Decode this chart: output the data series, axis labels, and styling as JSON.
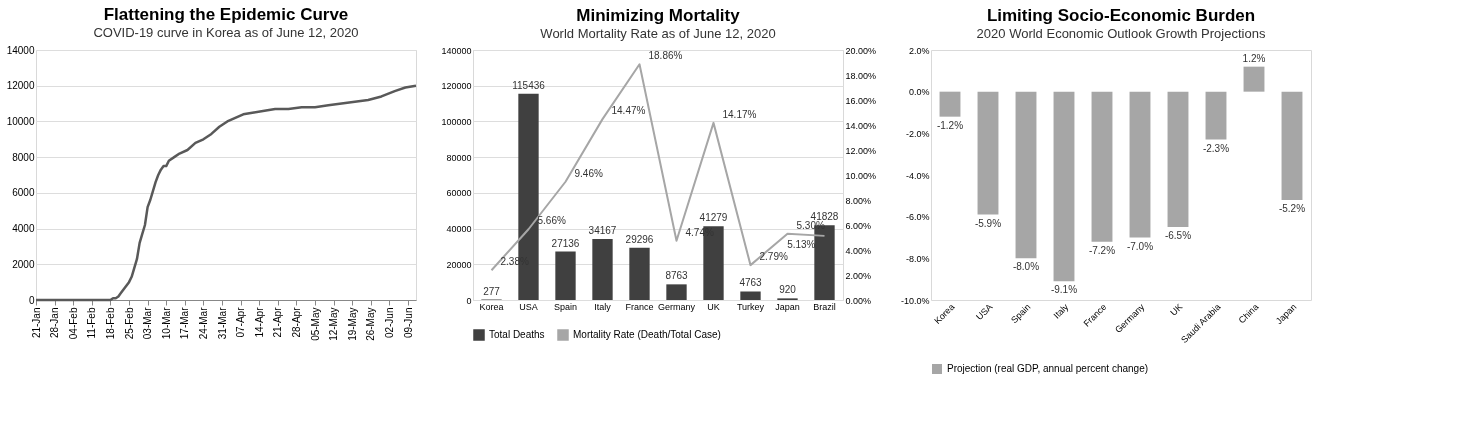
{
  "chart_data": [
    {
      "type": "line",
      "title": "Flattening the Epidemic Curve",
      "subtitle": "COVID-19 curve in Korea as of June 12, 2020",
      "x": [
        "2020-01-21",
        "2020-02-04",
        "2020-02-18",
        "2020-02-19",
        "2020-02-20",
        "2020-02-21",
        "2020-02-22",
        "2020-02-23",
        "2020-02-24",
        "2020-02-25",
        "2020-02-26",
        "2020-02-27",
        "2020-02-28",
        "2020-02-29",
        "2020-03-01",
        "2020-03-02",
        "2020-03-03",
        "2020-03-04",
        "2020-03-05",
        "2020-03-06",
        "2020-03-07",
        "2020-03-08",
        "2020-03-09",
        "2020-03-10",
        "2020-03-11",
        "2020-03-13",
        "2020-03-15",
        "2020-03-18",
        "2020-03-21",
        "2020-03-24",
        "2020-03-27",
        "2020-03-30",
        "2020-04-02",
        "2020-04-05",
        "2020-04-08",
        "2020-04-12",
        "2020-04-16",
        "2020-04-20",
        "2020-04-25",
        "2020-04-30",
        "2020-05-05",
        "2020-05-10",
        "2020-05-15",
        "2020-05-20",
        "2020-05-25",
        "2020-05-30",
        "2020-06-04",
        "2020-06-08",
        "2020-06-12"
      ],
      "series": [
        {
          "color": "#595959",
          "values": [
            0,
            0,
            0,
            100,
            100,
            200,
            400,
            600,
            800,
            1000,
            1300,
            1800,
            2300,
            3200,
            3700,
            4200,
            5200,
            5600,
            6100,
            6600,
            7000,
            7300,
            7500,
            7500,
            7800,
            8000,
            8200,
            8400,
            8800,
            9000,
            9300,
            9700,
            10000,
            10200,
            10400,
            10500,
            10600,
            10700,
            10700,
            10800,
            10800,
            10900,
            11000,
            11100,
            11200,
            11400,
            11700,
            11900,
            12000
          ]
        }
      ],
      "xlim": [
        "2020-01-21",
        "2020-06-12"
      ],
      "xticks": [
        {
          "value": "2020-01-21",
          "label": "21-Jan"
        },
        {
          "value": "2020-01-28",
          "label": "28-Jan"
        },
        {
          "value": "2020-02-04",
          "label": "04-Feb"
        },
        {
          "value": "2020-02-11",
          "label": "11-Feb"
        },
        {
          "value": "2020-02-18",
          "label": "18-Feb"
        },
        {
          "value": "2020-02-25",
          "label": "25-Feb"
        },
        {
          "value": "2020-03-03",
          "label": "03-Mar"
        },
        {
          "value": "2020-03-10",
          "label": "10-Mar"
        },
        {
          "value": "2020-03-17",
          "label": "17-Mar"
        },
        {
          "value": "2020-03-24",
          "label": "24-Mar"
        },
        {
          "value": "2020-03-31",
          "label": "31-Mar"
        },
        {
          "value": "2020-04-07",
          "label": "07-Apr"
        },
        {
          "value": "2020-04-14",
          "label": "14-Apr"
        },
        {
          "value": "2020-04-21",
          "label": "21-Apr"
        },
        {
          "value": "2020-04-28",
          "label": "28-Apr"
        },
        {
          "value": "2020-05-05",
          "label": "05-May"
        },
        {
          "value": "2020-05-12",
          "label": "12-May"
        },
        {
          "value": "2020-05-19",
          "label": "19-May"
        },
        {
          "value": "2020-05-26",
          "label": "26-May"
        },
        {
          "value": "2020-06-02",
          "label": "02-Jun"
        },
        {
          "value": "2020-06-09",
          "label": "09-Jun"
        }
      ],
      "ylim": [
        0,
        14000
      ],
      "yticks": [
        0,
        2000,
        4000,
        6000,
        8000,
        10000,
        12000,
        14000
      ],
      "grid": "y",
      "line_style": "solid",
      "marker": "none"
    },
    {
      "type": "bar",
      "title": "Minimizing Mortality",
      "subtitle": "World  Mortality Rate as of June 12, 2020",
      "categories": [
        "Korea",
        "USA",
        "Spain",
        "Italy",
        "France",
        "Germany",
        "UK",
        "Turkey",
        "Japan",
        "Brazil"
      ],
      "series": [
        {
          "name": "Total Deaths",
          "type": "bar",
          "color": "#404040",
          "values": [
            277,
            115436,
            27136,
            34167,
            29296,
            8763,
            41279,
            4763,
            920,
            41828
          ],
          "value_labels": [
            "277",
            "115436",
            "27136",
            "34167",
            "29296",
            "8763",
            "41279",
            "4763",
            "920",
            "41828"
          ]
        },
        {
          "name": "Mortality Rate (Death/Total Case)",
          "type": "line",
          "axis": "y2",
          "color": "#a6a6a6",
          "values": [
            2.38,
            5.66,
            9.46,
            14.47,
            18.86,
            4.74,
            14.17,
            2.79,
            5.3,
            5.13
          ],
          "value_labels": [
            "2.38%",
            "5.66%",
            "9.46%",
            "14.47%",
            "18.86%",
            "4.74%",
            "14.17%",
            "2.79%",
            "5.30%",
            "5.13%"
          ]
        }
      ],
      "ylim": [
        0,
        140000
      ],
      "yticks": [
        0,
        20000,
        40000,
        60000,
        80000,
        100000,
        120000,
        140000
      ],
      "y2lim": [
        0,
        20
      ],
      "y2ticks": [
        {
          "value": 0,
          "label": "0.00%"
        },
        {
          "value": 2,
          "label": "2.00%"
        },
        {
          "value": 4,
          "label": "4.00%"
        },
        {
          "value": 6,
          "label": "6.00%"
        },
        {
          "value": 8,
          "label": "8.00%"
        },
        {
          "value": 10,
          "label": "10.00%"
        },
        {
          "value": 12,
          "label": "12.00%"
        },
        {
          "value": 14,
          "label": "14.00%"
        },
        {
          "value": 16,
          "label": "16.00%"
        },
        {
          "value": 18,
          "label": "18.00%"
        },
        {
          "value": 20,
          "label": "20.00%"
        }
      ],
      "grid": "y",
      "legend": "bottom"
    },
    {
      "type": "bar",
      "title": "Limiting Socio-Economic Burden",
      "subtitle": "2020 World Economic Outlook Growth Projections",
      "categories": [
        "Korea",
        "USA",
        "Spain",
        "Italy",
        "France",
        "Germany",
        "UK",
        "Saudi Arabia",
        "China",
        "Japan"
      ],
      "series": [
        {
          "name": "Projection (real GDP, annual percent change)",
          "color": "#a6a6a6",
          "values": [
            -1.2,
            -5.9,
            -8.0,
            -9.1,
            -7.2,
            -7.0,
            -6.5,
            -2.3,
            1.2,
            -5.2
          ],
          "value_labels": [
            "-1.2%",
            "-5.9%",
            "-8.0%",
            "-9.1%",
            "-7.2%",
            "-7.0%",
            "-6.5%",
            "-2.3%",
            "1.2%",
            "-5.2%"
          ]
        }
      ],
      "ylim": [
        -10,
        2
      ],
      "yticks": [
        {
          "value": -10,
          "label": "-10.0%"
        },
        {
          "value": -8,
          "label": "-8.0%"
        },
        {
          "value": -6,
          "label": "-6.0%"
        },
        {
          "value": -4,
          "label": "-4.0%"
        },
        {
          "value": -2,
          "label": "-2.0%"
        },
        {
          "value": 0,
          "label": "0.0%"
        },
        {
          "value": 2,
          "label": "2.0%"
        }
      ],
      "legend": "bottom"
    }
  ]
}
